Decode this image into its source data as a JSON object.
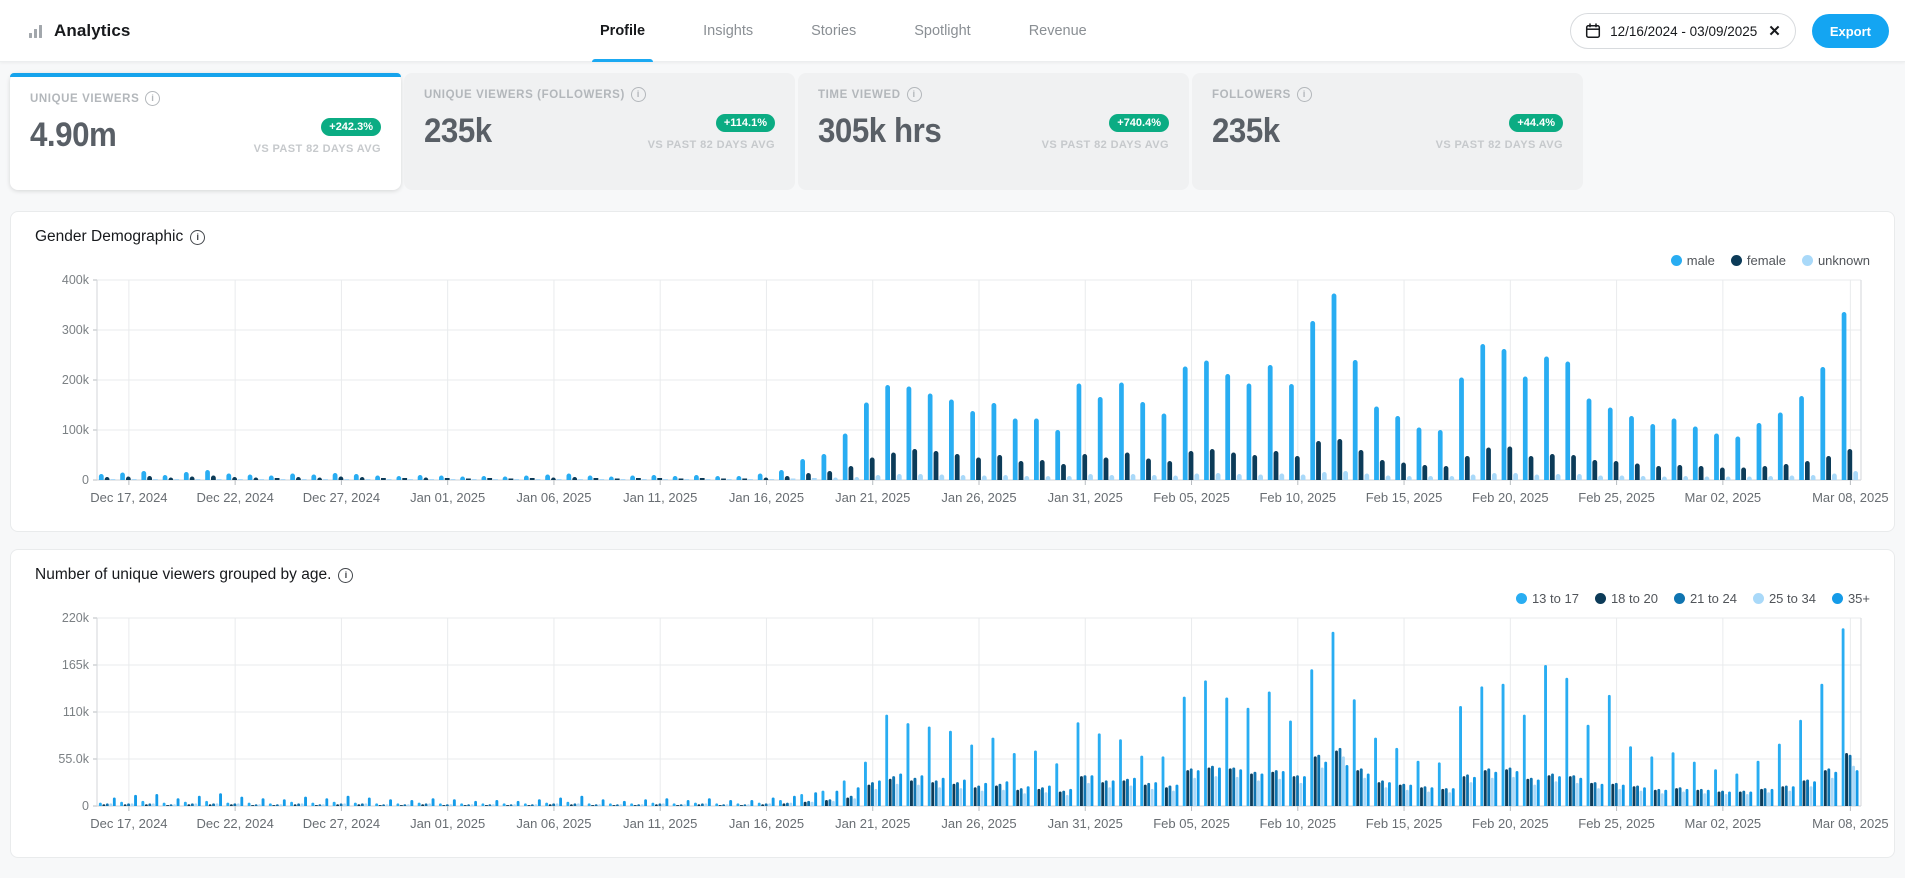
{
  "header": {
    "app_title": "Analytics",
    "tabs": [
      {
        "label": "Profile",
        "active": true
      },
      {
        "label": "Insights",
        "active": false
      },
      {
        "label": "Stories",
        "active": false
      },
      {
        "label": "Spotlight",
        "active": false
      },
      {
        "label": "Revenue",
        "active": false
      }
    ],
    "date_range": "12/16/2024 - 03/09/2025",
    "export_label": "Export"
  },
  "cards": [
    {
      "label": "UNIQUE VIEWERS",
      "value": "4.90m",
      "badge": "+242.3%",
      "compare": "VS PAST 82 DAYS AVG",
      "active": true
    },
    {
      "label": "UNIQUE VIEWERS (FOLLOWERS)",
      "value": "235k",
      "badge": "+114.1%",
      "compare": "VS PAST 82 DAYS AVG",
      "active": false
    },
    {
      "label": "TIME VIEWED",
      "value": "305k hrs",
      "badge": "+740.4%",
      "compare": "VS PAST 82 DAYS AVG",
      "active": false
    },
    {
      "label": "FOLLOWERS",
      "value": "235k",
      "badge": "+44.4%",
      "compare": "VS PAST 82 DAYS AVG",
      "active": false
    }
  ],
  "chart_data": [
    {
      "type": "bar",
      "title": "Gender Demographic",
      "unit": "thousands of viewers per day",
      "ylim": [
        0,
        400
      ],
      "grid": true,
      "legend_position": "top-right",
      "yticks": [
        {
          "v": 0,
          "label": "0"
        },
        {
          "v": 100,
          "label": "100k"
        },
        {
          "v": 200,
          "label": "200k"
        },
        {
          "v": 300,
          "label": "300k"
        },
        {
          "v": 400,
          "label": "400k"
        }
      ],
      "xticks": [
        {
          "i": 1,
          "label": "Dec 17, 2024"
        },
        {
          "i": 6,
          "label": "Dec 22, 2024"
        },
        {
          "i": 11,
          "label": "Dec 27, 2024"
        },
        {
          "i": 16,
          "label": "Jan 01, 2025"
        },
        {
          "i": 21,
          "label": "Jan 06, 2025"
        },
        {
          "i": 26,
          "label": "Jan 11, 2025"
        },
        {
          "i": 31,
          "label": "Jan 16, 2025"
        },
        {
          "i": 36,
          "label": "Jan 21, 2025"
        },
        {
          "i": 41,
          "label": "Jan 26, 2025"
        },
        {
          "i": 46,
          "label": "Jan 31, 2025"
        },
        {
          "i": 51,
          "label": "Feb 05, 2025"
        },
        {
          "i": 56,
          "label": "Feb 10, 2025"
        },
        {
          "i": 61,
          "label": "Feb 15, 2025"
        },
        {
          "i": 66,
          "label": "Feb 20, 2025"
        },
        {
          "i": 71,
          "label": "Feb 25, 2025"
        },
        {
          "i": 76,
          "label": "Mar 02, 2025"
        },
        {
          "i": 82,
          "label": "Mar 08, 2025"
        }
      ],
      "x_start": "Dec 16, 2024",
      "x_step": "1 day",
      "series": [
        {
          "name": "male",
          "color": "#29adf2",
          "values": [
            12,
            15,
            18,
            10,
            16,
            20,
            13,
            11,
            9,
            13,
            11,
            14,
            12,
            9,
            8,
            10,
            9,
            7,
            8,
            7,
            9,
            11,
            13,
            9,
            7,
            9,
            10,
            8,
            10,
            8,
            8,
            13,
            20,
            42,
            52,
            93,
            155,
            190,
            187,
            173,
            161,
            138,
            154,
            123,
            123,
            100,
            193,
            166,
            195,
            156,
            133,
            227,
            239,
            212,
            193,
            230,
            192,
            318,
            373,
            240,
            147,
            128,
            105,
            100,
            205,
            272,
            262,
            207,
            247,
            237,
            163,
            145,
            128,
            112,
            123,
            107,
            93,
            87,
            114,
            135,
            168,
            226,
            336
          ]
        },
        {
          "name": "female",
          "color": "#0c3b58",
          "values": [
            6,
            7,
            8,
            5,
            7,
            9,
            6,
            5,
            4,
            6,
            5,
            7,
            6,
            4,
            4,
            5,
            4,
            3,
            4,
            3,
            4,
            5,
            6,
            4,
            3,
            4,
            4,
            3,
            4,
            3,
            3,
            5,
            8,
            14,
            18,
            28,
            45,
            55,
            62,
            58,
            52,
            45,
            50,
            38,
            40,
            32,
            52,
            45,
            55,
            43,
            38,
            58,
            62,
            55,
            50,
            58,
            48,
            78,
            82,
            60,
            40,
            35,
            30,
            28,
            48,
            65,
            67,
            48,
            52,
            50,
            40,
            38,
            33,
            28,
            30,
            28,
            25,
            25,
            28,
            32,
            38,
            48,
            62
          ]
        },
        {
          "name": "unknown",
          "color": "#a9d9f9",
          "values": [
            2,
            2,
            2,
            2,
            2,
            2,
            2,
            2,
            2,
            2,
            2,
            2,
            2,
            2,
            2,
            2,
            2,
            2,
            2,
            2,
            2,
            2,
            2,
            2,
            2,
            2,
            2,
            2,
            2,
            2,
            2,
            2,
            3,
            4,
            5,
            6,
            10,
            12,
            12,
            11,
            10,
            9,
            10,
            8,
            8,
            8,
            12,
            10,
            12,
            10,
            9,
            13,
            14,
            12,
            11,
            13,
            11,
            16,
            18,
            13,
            9,
            8,
            8,
            8,
            11,
            14,
            14,
            11,
            12,
            12,
            9,
            9,
            8,
            7,
            8,
            7,
            7,
            7,
            8,
            9,
            10,
            13,
            18
          ]
        }
      ]
    },
    {
      "type": "bar",
      "title": "Number of unique viewers grouped by age.",
      "unit": "thousands of viewers per day",
      "ylim": [
        0,
        220
      ],
      "grid": true,
      "legend_position": "top-right",
      "yticks": [
        {
          "v": 0,
          "label": "0"
        },
        {
          "v": 55,
          "label": "55.0k"
        },
        {
          "v": 110,
          "label": "110k"
        },
        {
          "v": 165,
          "label": "165k"
        },
        {
          "v": 220,
          "label": "220k"
        }
      ],
      "xticks": [
        {
          "i": 1,
          "label": "Dec 17, 2024"
        },
        {
          "i": 6,
          "label": "Dec 22, 2024"
        },
        {
          "i": 11,
          "label": "Dec 27, 2024"
        },
        {
          "i": 16,
          "label": "Jan 01, 2025"
        },
        {
          "i": 21,
          "label": "Jan 06, 2025"
        },
        {
          "i": 26,
          "label": "Jan 11, 2025"
        },
        {
          "i": 31,
          "label": "Jan 16, 2025"
        },
        {
          "i": 36,
          "label": "Jan 21, 2025"
        },
        {
          "i": 41,
          "label": "Jan 26, 2025"
        },
        {
          "i": 46,
          "label": "Jan 31, 2025"
        },
        {
          "i": 51,
          "label": "Feb 05, 2025"
        },
        {
          "i": 56,
          "label": "Feb 10, 2025"
        },
        {
          "i": 61,
          "label": "Feb 15, 2025"
        },
        {
          "i": 66,
          "label": "Feb 20, 2025"
        },
        {
          "i": 71,
          "label": "Feb 25, 2025"
        },
        {
          "i": 76,
          "label": "Mar 02, 2025"
        },
        {
          "i": 82,
          "label": "Mar 08, 2025"
        }
      ],
      "x_start": "Dec 16, 2024",
      "x_step": "1 day",
      "series": [
        {
          "name": "13 to 17",
          "color": "#29adf2",
          "values": [
            4,
            5,
            6,
            4,
            5,
            6,
            4,
            4,
            3,
            5,
            4,
            5,
            4,
            3,
            3,
            4,
            3,
            3,
            3,
            3,
            3,
            4,
            5,
            3,
            3,
            3,
            4,
            3,
            4,
            3,
            3,
            4,
            7,
            14,
            18,
            30,
            52,
            107,
            97,
            93,
            88,
            72,
            80,
            62,
            65,
            50,
            98,
            85,
            78,
            59,
            58,
            128,
            147,
            127,
            115,
            134,
            100,
            160,
            204,
            125,
            80,
            68,
            53,
            51,
            117,
            140,
            143,
            107,
            165,
            150,
            95,
            130,
            70,
            58,
            63,
            52,
            43,
            38,
            53,
            73,
            101,
            143,
            208
          ]
        },
        {
          "name": "18 to 20",
          "color": "#0c3b58",
          "values": [
            2,
            2,
            2,
            1,
            2,
            2,
            2,
            1,
            1,
            2,
            1,
            2,
            2,
            1,
            1,
            2,
            1,
            1,
            1,
            1,
            1,
            2,
            2,
            1,
            1,
            1,
            2,
            1,
            2,
            1,
            1,
            2,
            3,
            5,
            7,
            10,
            25,
            32,
            30,
            28,
            26,
            22,
            24,
            19,
            20,
            17,
            35,
            28,
            30,
            25,
            22,
            42,
            45,
            44,
            38,
            40,
            35,
            58,
            65,
            42,
            28,
            25,
            22,
            20,
            35,
            42,
            43,
            32,
            36,
            35,
            27,
            26,
            23,
            19,
            21,
            19,
            17,
            17,
            20,
            23,
            30,
            42,
            62
          ]
        },
        {
          "name": "21 to 24",
          "color": "#0f74b0",
          "values": [
            3,
            3,
            3,
            2,
            3,
            3,
            3,
            2,
            2,
            3,
            2,
            3,
            3,
            2,
            2,
            3,
            2,
            2,
            2,
            2,
            2,
            3,
            3,
            2,
            2,
            2,
            3,
            2,
            3,
            2,
            2,
            3,
            4,
            6,
            8,
            12,
            28,
            35,
            33,
            30,
            28,
            24,
            26,
            21,
            22,
            18,
            36,
            30,
            32,
            27,
            24,
            44,
            47,
            45,
            40,
            42,
            36,
            60,
            68,
            44,
            30,
            26,
            23,
            21,
            37,
            44,
            45,
            33,
            38,
            36,
            28,
            27,
            24,
            20,
            22,
            20,
            18,
            18,
            21,
            24,
            31,
            44,
            60
          ]
        },
        {
          "name": "25 to 34",
          "color": "#a9d9f9",
          "values": [
            3,
            3,
            3,
            2,
            3,
            3,
            3,
            2,
            2,
            3,
            2,
            3,
            3,
            2,
            2,
            3,
            2,
            2,
            2,
            2,
            2,
            3,
            3,
            2,
            2,
            2,
            3,
            2,
            3,
            2,
            2,
            3,
            4,
            5,
            6,
            9,
            20,
            26,
            25,
            22,
            21,
            18,
            19,
            15,
            16,
            13,
            27,
            22,
            24,
            20,
            18,
            33,
            35,
            34,
            30,
            32,
            27,
            45,
            58,
            33,
            22,
            19,
            17,
            16,
            28,
            33,
            34,
            25,
            29,
            27,
            21,
            20,
            18,
            15,
            17,
            15,
            14,
            14,
            16,
            18,
            23,
            33,
            47
          ]
        },
        {
          "name": "35+",
          "color": "#149be8",
          "values": [
            10,
            13,
            14,
            9,
            12,
            15,
            11,
            9,
            8,
            11,
            9,
            12,
            10,
            8,
            7,
            9,
            8,
            6,
            7,
            6,
            8,
            10,
            12,
            8,
            6,
            8,
            9,
            7,
            9,
            7,
            7,
            10,
            12,
            16,
            18,
            22,
            30,
            38,
            36,
            33,
            31,
            27,
            29,
            23,
            24,
            20,
            36,
            30,
            33,
            28,
            25,
            42,
            45,
            43,
            38,
            41,
            35,
            52,
            48,
            38,
            28,
            25,
            22,
            21,
            34,
            40,
            41,
            31,
            35,
            33,
            26,
            25,
            22,
            19,
            20,
            19,
            17,
            17,
            20,
            23,
            29,
            40,
            42
          ]
        }
      ]
    }
  ]
}
